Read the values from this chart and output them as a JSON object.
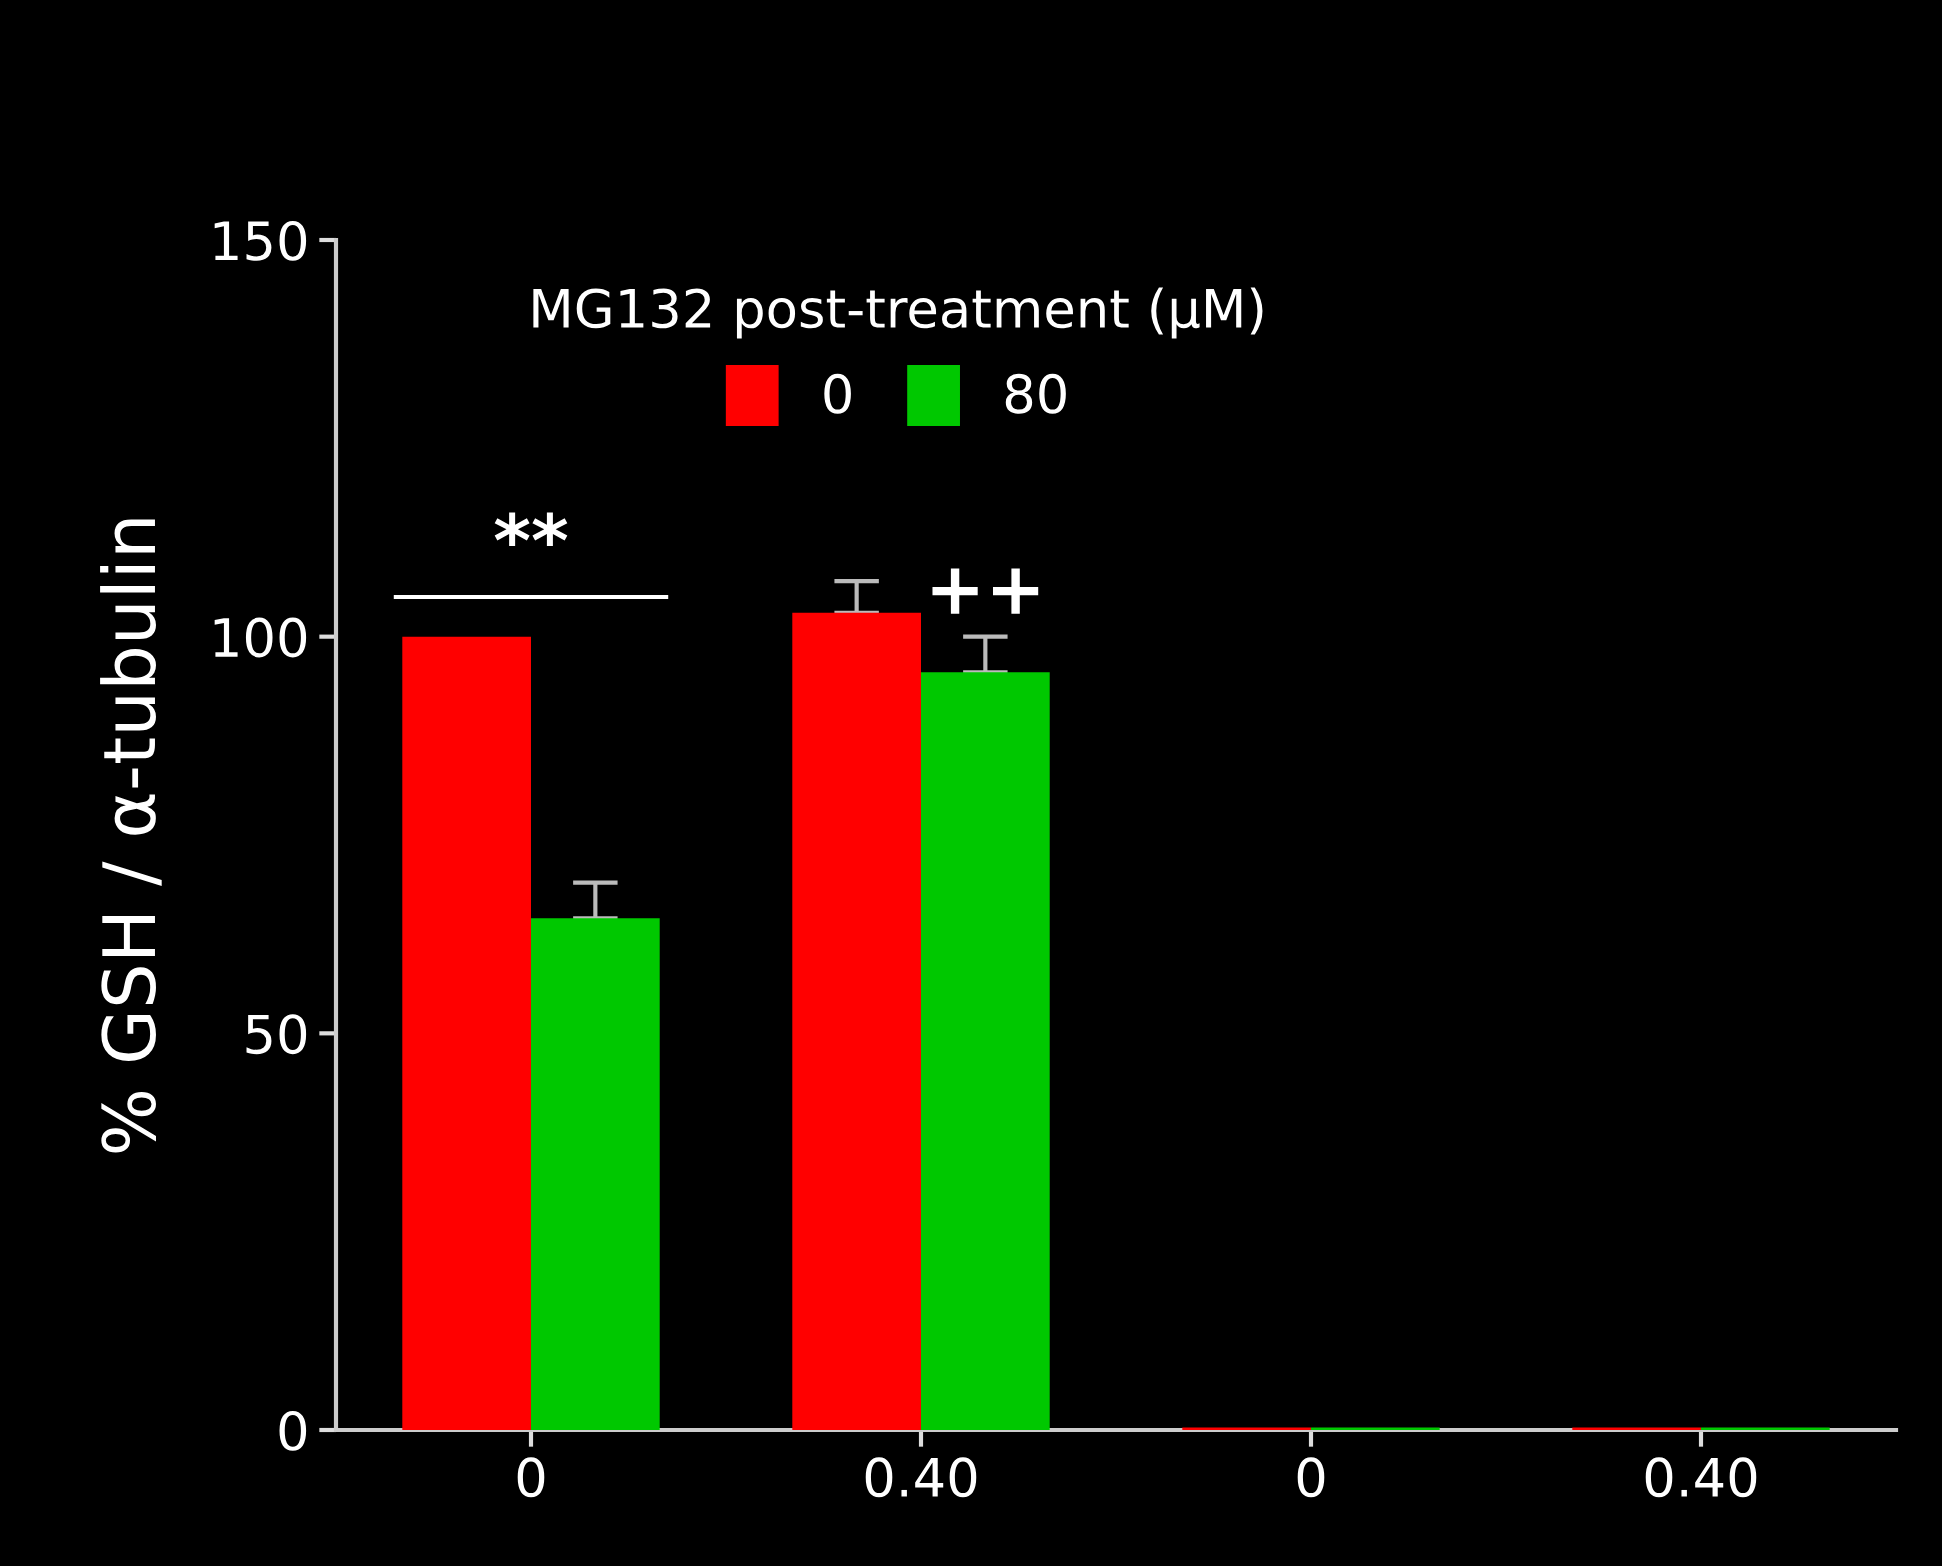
{
  "chart_data": {
    "type": "bar",
    "ylabel": "% GSH / α-tubulin",
    "legend_title": "MG132 post-treatment (µM)",
    "legend": "top",
    "categories": [
      "0",
      "0.40",
      "0",
      "0.40"
    ],
    "series": [
      {
        "name": "0",
        "color": "#ff0000",
        "values": [
          100,
          103,
          0.3,
          0.3
        ],
        "errors": [
          null,
          4,
          null,
          null
        ]
      },
      {
        "name": "80",
        "color": "#00c800",
        "values": [
          64.5,
          95.5,
          0.3,
          0.3
        ],
        "errors": [
          4.5,
          4.5,
          null,
          null
        ]
      }
    ],
    "ylim": [
      0,
      150
    ],
    "yticks": [
      0,
      50,
      100,
      150
    ],
    "grid": false,
    "annotations": [
      "**",
      "++"
    ]
  }
}
